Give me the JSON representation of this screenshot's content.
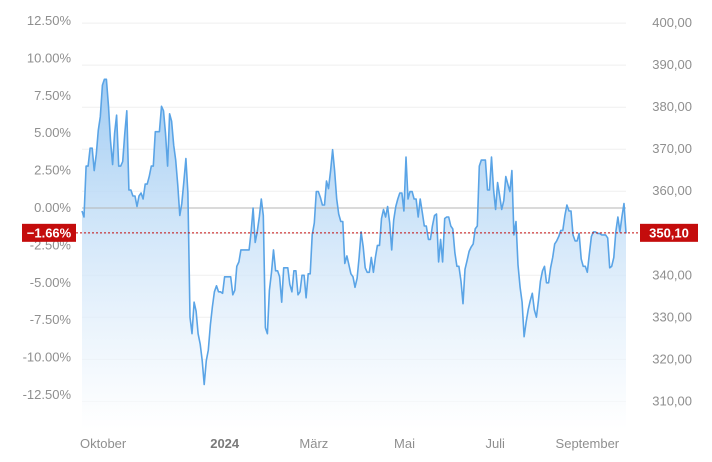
{
  "chart_data": {
    "type": "area",
    "title": "",
    "xlabel": "",
    "ylabel": "",
    "x_ticks": [
      {
        "label": "Oktober",
        "bold": false,
        "date": "2023-10-01"
      },
      {
        "label": "2024",
        "bold": true,
        "date": "2024-01-01"
      },
      {
        "label": "März",
        "bold": false,
        "date": "2024-03-01"
      },
      {
        "label": "Mai",
        "bold": false,
        "date": "2024-05-01"
      },
      {
        "label": "Juli",
        "bold": false,
        "date": "2024-07-01"
      },
      {
        "label": "September",
        "bold": false,
        "date": "2024-09-01"
      }
    ],
    "y_left": {
      "ticks": [
        "12.50%",
        "10.00%",
        "7.50%",
        "5.00%",
        "2.50%",
        "0.00%",
        "-2.50%",
        "-5.00%",
        "-7.50%",
        "-10.00%",
        "-12.50%"
      ],
      "tick_values": [
        12.5,
        10,
        7.5,
        5,
        2.5,
        0,
        -2.5,
        -5,
        -7.5,
        -10,
        -12.5
      ],
      "unit": "percent"
    },
    "y_right": {
      "ticks": [
        "400,00",
        "390,00",
        "380,00",
        "370,00",
        "360,00",
        "350,00",
        "340,00",
        "330,00",
        "320,00",
        "310,00"
      ],
      "tick_values": [
        400,
        390,
        380,
        370,
        360,
        350,
        340,
        330,
        320,
        310
      ]
    },
    "baseline_price": 356.01,
    "current": {
      "percent_label": "−1.66%",
      "price_label": "350,10",
      "percent": -1.66,
      "price": 350.1
    },
    "colors": {
      "line": "#5aa4e6",
      "fill_top": "#9cc9f2",
      "fill_bottom": "#ffffff",
      "badge": "#c40c0c",
      "zero_line": "#b5b5b5",
      "grid": "#efefef"
    },
    "grid": true,
    "series": [
      {
        "x_start": "2023-09-27",
        "x_end": "2024-09-27",
        "y_percent": [
          -0.2,
          -0.6,
          2.8,
          2.8,
          4.0,
          4.0,
          2.5,
          3.6,
          5.2,
          6.1,
          8.2,
          8.6,
          8.6,
          6.8,
          4.5,
          2.9,
          5.0,
          6.2,
          2.8,
          2.8,
          3.1,
          5.0,
          6.5,
          1.2,
          1.2,
          0.8,
          0.8,
          0.1,
          0.8,
          1.0,
          0.6,
          1.6,
          1.6,
          2.1,
          2.8,
          2.8,
          5.1,
          5.1,
          5.1,
          6.8,
          6.5,
          5.0,
          2.8,
          6.3,
          5.8,
          4.2,
          3.2,
          1.5,
          -0.5,
          0.3,
          1.8,
          3.3,
          1.0,
          -7.3,
          -8.4,
          -6.3,
          -6.9,
          -8.4,
          -9.1,
          -10.2,
          -11.8,
          -10.2,
          -9.5,
          -7.8,
          -6.6,
          -5.6,
          -5.2,
          -5.6,
          -5.6,
          -5.7,
          -4.6,
          -4.6,
          -4.6,
          -4.6,
          -5.8,
          -5.5,
          -3.9,
          -3.6,
          -2.8,
          -2.8,
          -2.8,
          -2.8,
          -2.8,
          -1.6,
          0.0,
          -2.3,
          -1.6,
          -0.6,
          0.6,
          -0.5,
          -8.0,
          -8.4,
          -5.5,
          -4.3,
          -2.8,
          -4.2,
          -4.2,
          -4.6,
          -6.3,
          -4.0,
          -4.0,
          -4.0,
          -5.1,
          -5.6,
          -4.2,
          -4.2,
          -5.8,
          -5.6,
          -4.5,
          -4.5,
          -6.0,
          -4.4,
          -4.4,
          -1.8,
          -1.0,
          1.1,
          1.1,
          0.7,
          0.2,
          0.2,
          1.8,
          1.3,
          2.5,
          3.9,
          2.5,
          0.6,
          -0.4,
          -0.9,
          -0.9,
          -3.7,
          -3.2,
          -3.8,
          -4.4,
          -4.6,
          -5.3,
          -4.7,
          -3.3,
          -1.6,
          -2.6,
          -4.0,
          -4.3,
          -4.3,
          -3.3,
          -4.3,
          -3.3,
          -2.5,
          -2.5,
          -0.7,
          -0.1,
          -0.6,
          0.1,
          -1.0,
          -2.8,
          -0.8,
          0.1,
          0.6,
          1.0,
          1.0,
          -0.2,
          3.4,
          0.6,
          1.1,
          1.1,
          0.6,
          0.6,
          -0.6,
          0.6,
          -0.3,
          -1.2,
          -1.2,
          -2.1,
          -2.1,
          -1.2,
          -0.5,
          -0.4,
          -3.6,
          -2.1,
          -3.6,
          -0.7,
          -0.6,
          -0.6,
          -1.2,
          -1.4,
          -3.0,
          -3.9,
          -3.9,
          -4.9,
          -6.4,
          -4.1,
          -3.5,
          -2.9,
          -2.6,
          -2.4,
          -1.4,
          -1.2,
          2.8,
          3.2,
          3.2,
          3.2,
          1.2,
          1.2,
          3.4,
          1.2,
          -0.1,
          1.7,
          0.8,
          -0.1,
          0.5,
          2.1,
          1.6,
          1.1,
          2.5,
          -1.8,
          -0.9,
          -3.8,
          -5.3,
          -6.3,
          -8.6,
          -7.6,
          -6.8,
          -6.2,
          -5.7,
          -6.8,
          -7.3,
          -6.2,
          -4.9,
          -4.2,
          -3.9,
          -5.0,
          -5.0,
          -4.0,
          -3.3,
          -2.4,
          -2.2,
          -1.9,
          -1.5,
          -1.5,
          -0.5,
          0.2,
          -0.2,
          -0.2,
          -1.8,
          -2.2,
          -2.2,
          -1.7,
          -3.4,
          -3.9,
          -3.9,
          -4.3,
          -3.1,
          -1.9,
          -1.6,
          -1.6,
          -1.7,
          -1.7,
          -1.8,
          -1.8,
          -1.8,
          -2.0,
          -4.0,
          -3.9,
          -3.3,
          -1.6,
          -0.6,
          -1.6,
          -0.6,
          0.3,
          -1.7
        ]
      }
    ]
  }
}
